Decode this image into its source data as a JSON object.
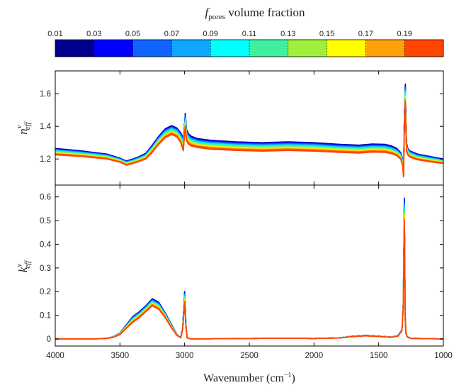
{
  "chart_data": {
    "type": "line",
    "colorbar": {
      "title_main": "f",
      "title_sub": "pores",
      "title_rest": " volume fraction",
      "ticks": [
        "0.01",
        "0.03",
        "0.05",
        "0.07",
        "0.09",
        "0.11",
        "0.13",
        "0.15",
        "0.17",
        "0.19"
      ],
      "colors": [
        "#00008f",
        "#0000ff",
        "#0f63ff",
        "#0ea6ff",
        "#00ffff",
        "#40f0a0",
        "#9ff03a",
        "#ffff00",
        "#ffa10a",
        "#ff4500"
      ]
    },
    "xlabel_main": "Wavenumber (cm",
    "xlabel_sup": "−1",
    "xlabel_end": ")",
    "xlim": [
      4000,
      1000
    ],
    "xticks": [
      4000,
      3500,
      3000,
      2500,
      2000,
      1500,
      1000
    ],
    "panels": [
      {
        "name": "n-effective",
        "ylabel": "n",
        "ylabel_sup": "ν",
        "ylabel_sub": "eff",
        "ylim": [
          1.04,
          1.74
        ],
        "yticks": [
          1.2,
          1.4,
          1.6
        ],
        "ytick_labels": [
          "1.2",
          "1.4",
          "1.6"
        ],
        "series_low_f": {
          "fraction": 0.01,
          "x": [
            4000,
            3800,
            3600,
            3500,
            3450,
            3400,
            3350,
            3300,
            3250,
            3200,
            3150,
            3100,
            3060,
            3030,
            3010,
            3000,
            2995,
            2990,
            2985,
            2970,
            2950,
            2900,
            2800,
            2600,
            2400,
            2200,
            2000,
            1800,
            1650,
            1550,
            1450,
            1400,
            1360,
            1330,
            1315,
            1308,
            1302,
            1298,
            1294,
            1290,
            1285,
            1275,
            1260,
            1200,
            1100,
            1000
          ],
          "y": [
            1.265,
            1.25,
            1.23,
            1.205,
            1.188,
            1.2,
            1.215,
            1.235,
            1.285,
            1.34,
            1.385,
            1.405,
            1.39,
            1.36,
            1.33,
            1.42,
            1.48,
            1.43,
            1.38,
            1.355,
            1.34,
            1.325,
            1.315,
            1.305,
            1.3,
            1.305,
            1.3,
            1.29,
            1.285,
            1.292,
            1.29,
            1.28,
            1.265,
            1.24,
            1.2,
            1.12,
            1.44,
            1.56,
            1.66,
            1.45,
            1.3,
            1.265,
            1.25,
            1.23,
            1.215,
            1.2
          ]
        },
        "series_high_f": {
          "fraction": 0.19,
          "x": [
            4000,
            3800,
            3600,
            3500,
            3450,
            3400,
            3350,
            3300,
            3250,
            3200,
            3150,
            3100,
            3060,
            3030,
            3010,
            3000,
            2995,
            2990,
            2985,
            2970,
            2950,
            2900,
            2800,
            2600,
            2400,
            2200,
            2000,
            1800,
            1650,
            1550,
            1450,
            1400,
            1360,
            1330,
            1315,
            1308,
            1302,
            1298,
            1294,
            1290,
            1285,
            1275,
            1260,
            1200,
            1100,
            1000
          ],
          "y": [
            1.225,
            1.215,
            1.2,
            1.18,
            1.162,
            1.172,
            1.185,
            1.2,
            1.24,
            1.29,
            1.33,
            1.35,
            1.335,
            1.3,
            1.25,
            1.355,
            1.39,
            1.35,
            1.31,
            1.29,
            1.28,
            1.27,
            1.26,
            1.252,
            1.248,
            1.252,
            1.248,
            1.24,
            1.236,
            1.242,
            1.24,
            1.232,
            1.22,
            1.198,
            1.16,
            1.09,
            1.36,
            1.5,
            1.54,
            1.38,
            1.25,
            1.225,
            1.212,
            1.195,
            1.182,
            1.172
          ]
        }
      },
      {
        "name": "k-effective",
        "ylabel": "k",
        "ylabel_sup": "ν",
        "ylabel_sub": "eff",
        "ylim": [
          -0.03,
          0.65
        ],
        "yticks": [
          0,
          0.1,
          0.2,
          0.3,
          0.4,
          0.5,
          0.6
        ],
        "ytick_labels": [
          "0",
          "0.1",
          "0.2",
          "0.3",
          "0.4",
          "0.5",
          "0.6"
        ],
        "series_low_f": {
          "fraction": 0.01,
          "x": [
            4000,
            3700,
            3600,
            3550,
            3500,
            3450,
            3400,
            3350,
            3300,
            3250,
            3200,
            3150,
            3100,
            3060,
            3030,
            3015,
            3005,
            3000,
            2995,
            2990,
            2980,
            2950,
            2500,
            2200,
            2000,
            1800,
            1700,
            1600,
            1500,
            1400,
            1350,
            1320,
            1310,
            1305,
            1302,
            1299,
            1295,
            1290,
            1280,
            1250,
            1000
          ],
          "y": [
            0,
            0,
            0.003,
            0.01,
            0.025,
            0.06,
            0.095,
            0.115,
            0.14,
            0.17,
            0.155,
            0.11,
            0.06,
            0.02,
            0.005,
            0.05,
            0.15,
            0.2,
            0.15,
            0.06,
            0.005,
            0,
            0.002,
            0.003,
            0.002,
            0.005,
            0.012,
            0.015,
            0.012,
            0.008,
            0.015,
            0.04,
            0.15,
            0.4,
            0.595,
            0.4,
            0.1,
            0.03,
            0.01,
            0.003,
            0
          ]
        },
        "series_high_f": {
          "fraction": 0.19,
          "x": [
            4000,
            3700,
            3600,
            3550,
            3500,
            3450,
            3400,
            3350,
            3300,
            3250,
            3200,
            3150,
            3100,
            3060,
            3030,
            3015,
            3005,
            3000,
            2995,
            2990,
            2980,
            2950,
            2500,
            2200,
            2000,
            1800,
            1700,
            1600,
            1500,
            1400,
            1350,
            1320,
            1310,
            1305,
            1302,
            1299,
            1295,
            1290,
            1280,
            1250,
            1000
          ],
          "y": [
            0,
            0,
            0.002,
            0.007,
            0.018,
            0.045,
            0.07,
            0.09,
            0.115,
            0.14,
            0.125,
            0.09,
            0.045,
            0.015,
            0.005,
            0.04,
            0.11,
            0.15,
            0.11,
            0.045,
            0.004,
            0,
            0.002,
            0.003,
            0.002,
            0.004,
            0.01,
            0.013,
            0.01,
            0.007,
            0.012,
            0.035,
            0.13,
            0.34,
            0.49,
            0.34,
            0.085,
            0.025,
            0.008,
            0.002,
            0
          ]
        }
      }
    ]
  }
}
